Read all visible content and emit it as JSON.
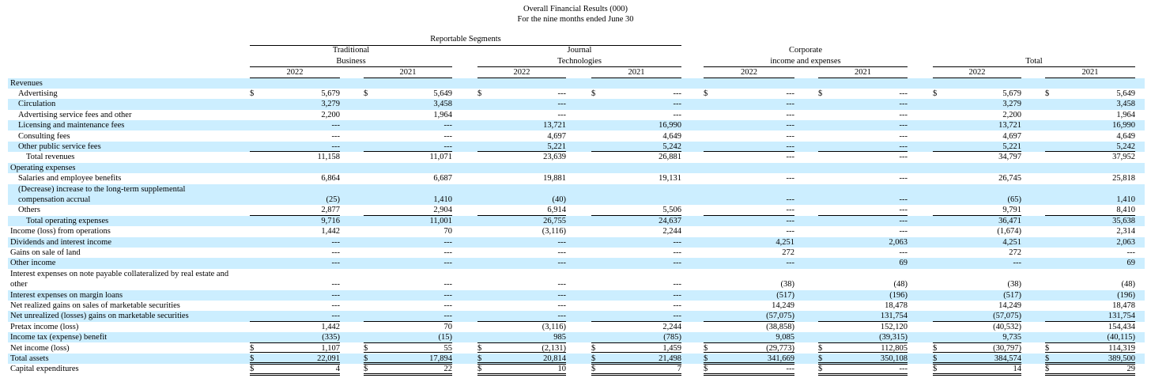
{
  "header": {
    "title": "Overall Financial Results (000)",
    "subtitle": "For the nine months ended June 30"
  },
  "table": {
    "group": "Reportable Segments",
    "segments": [
      [
        "Traditional",
        "Business"
      ],
      [
        "Journal",
        "Technologies"
      ],
      [
        "Corporate",
        "income and expenses"
      ],
      [
        "Total"
      ]
    ],
    "years": [
      "2022",
      "2021"
    ],
    "rows": [
      {
        "label": [
          "Revenues"
        ],
        "level": 0
      },
      {
        "label": [
          "Advertising"
        ],
        "level": 1,
        "currency": "$",
        "values": [
          "5,679",
          "5,649",
          "---",
          "---",
          "---",
          "---",
          "5,679",
          "5,649"
        ]
      },
      {
        "label": [
          "Circulation"
        ],
        "level": 1,
        "values": [
          "3,279",
          "3,458",
          "---",
          "---",
          "---",
          "---",
          "3,279",
          "3,458"
        ]
      },
      {
        "label": [
          "Advertising service fees and other"
        ],
        "level": 1,
        "values": [
          "2,200",
          "1,964",
          "---",
          "---",
          "---",
          "---",
          "2,200",
          "1,964"
        ]
      },
      {
        "label": [
          "Licensing and maintenance fees"
        ],
        "level": 1,
        "values": [
          "---",
          "---",
          "13,721",
          "16,990",
          "---",
          "---",
          "13,721",
          "16,990"
        ]
      },
      {
        "label": [
          "Consulting fees"
        ],
        "level": 1,
        "values": [
          "---",
          "---",
          "4,697",
          "4,649",
          "---",
          "---",
          "4,697",
          "4,649"
        ]
      },
      {
        "label": [
          "Other public service fees"
        ],
        "level": 1,
        "rule": "single",
        "values": [
          "---",
          "---",
          "5,221",
          "5,242",
          "---",
          "---",
          "5,221",
          "5,242"
        ]
      },
      {
        "label": [
          "Total revenues"
        ],
        "level": 2,
        "values": [
          "11,158",
          "11,071",
          "23,639",
          "26,881",
          "---",
          "---",
          "34,797",
          "37,952"
        ]
      },
      {
        "label": [
          "Operating expenses"
        ],
        "level": 0
      },
      {
        "label": [
          "Salaries and employee benefits"
        ],
        "level": 1,
        "values": [
          "6,864",
          "6,687",
          "19,881",
          "19,131",
          "---",
          "---",
          "26,745",
          "25,818"
        ]
      },
      {
        "label": [
          "(Decrease) increase to the long-term supplemental",
          "compensation accrual"
        ],
        "level": 1,
        "values": [
          "(25)",
          "1,410",
          "(40)",
          null,
          "---",
          "---",
          "(65)",
          "1,410"
        ]
      },
      {
        "label": [
          "Others"
        ],
        "level": 1,
        "rule": "single",
        "values": [
          "2,877",
          "2,904",
          "6,914",
          "5,506",
          "---",
          "---",
          "9,791",
          "8,410"
        ]
      },
      {
        "label": [
          "Total operating expenses"
        ],
        "level": 2,
        "values": [
          "9,716",
          "11,001",
          "26,755",
          "24,637",
          "---",
          "---",
          "36,471",
          "35,638"
        ]
      },
      {
        "label": [
          "Income (loss) from operations"
        ],
        "level": 0,
        "values": [
          "1,442",
          "70",
          "(3,116)",
          "2,244",
          "---",
          "---",
          "(1,674)",
          "2,314"
        ]
      },
      {
        "label": [
          "Dividends and interest income"
        ],
        "level": 0,
        "values": [
          "---",
          "---",
          "---",
          "---",
          "4,251",
          "2,063",
          "4,251",
          "2,063"
        ]
      },
      {
        "label": [
          "Gains on sale of land"
        ],
        "level": 0,
        "values": [
          "---",
          "---",
          "---",
          "---",
          "272",
          "---",
          "272",
          "---"
        ]
      },
      {
        "label": [
          "Other income"
        ],
        "level": 0,
        "values": [
          "---",
          "---",
          "---",
          "---",
          "---",
          "69",
          "---",
          "69"
        ]
      },
      {
        "label": [
          "Interest expenses on note payable collateralized by real estate and",
          "other"
        ],
        "level": 0,
        "values": [
          "---",
          "---",
          "---",
          "---",
          "(38)",
          "(48)",
          "(38)",
          "(48)"
        ]
      },
      {
        "label": [
          "Interest expenses on margin loans"
        ],
        "level": 0,
        "values": [
          "---",
          "---",
          "---",
          "---",
          "(517)",
          "(196)",
          "(517)",
          "(196)"
        ]
      },
      {
        "label": [
          "Net realized gains on sales of marketable securities"
        ],
        "level": 0,
        "values": [
          "---",
          "---",
          "---",
          "---",
          "14,249",
          "18,478",
          "14,249",
          "18,478"
        ]
      },
      {
        "label": [
          "Net unrealized (losses) gains on marketable securities"
        ],
        "level": 0,
        "rule": "single",
        "values": [
          "---",
          "---",
          "---",
          "---",
          "(57,075)",
          "131,754",
          "(57,075)",
          "131,754"
        ]
      },
      {
        "label": [
          "Pretax income (loss)"
        ],
        "level": 0,
        "values": [
          "1,442",
          "70",
          "(3,116)",
          "2,244",
          "(38,858)",
          "152,120",
          "(40,532)",
          "154,434"
        ]
      },
      {
        "label": [
          "Income tax (expense) benefit"
        ],
        "level": 0,
        "rule": "single",
        "values": [
          "(335)",
          "(15)",
          "985",
          "(785)",
          "9,085",
          "(39,315)",
          "9,735",
          "(40,115)"
        ]
      },
      {
        "label": [
          "Net income (loss)"
        ],
        "level": 0,
        "currency": "$",
        "rule": "double",
        "values": [
          "1,107",
          "55",
          "(2,131)",
          "1,459",
          "(29,773)",
          "112,805",
          "(30,797)",
          "114,319"
        ]
      },
      {
        "label": [
          "Total assets"
        ],
        "level": 0,
        "currency": "$",
        "rule": "double",
        "values": [
          "22,091",
          "17,894",
          "20,814",
          "21,498",
          "341,669",
          "350,108",
          "384,574",
          "389,500"
        ]
      },
      {
        "label": [
          "Capital expenditures"
        ],
        "level": 0,
        "currency": "$",
        "rule": "double",
        "values": [
          "4",
          "22",
          "10",
          "7",
          "---",
          "---",
          "14",
          "29"
        ]
      }
    ]
  }
}
